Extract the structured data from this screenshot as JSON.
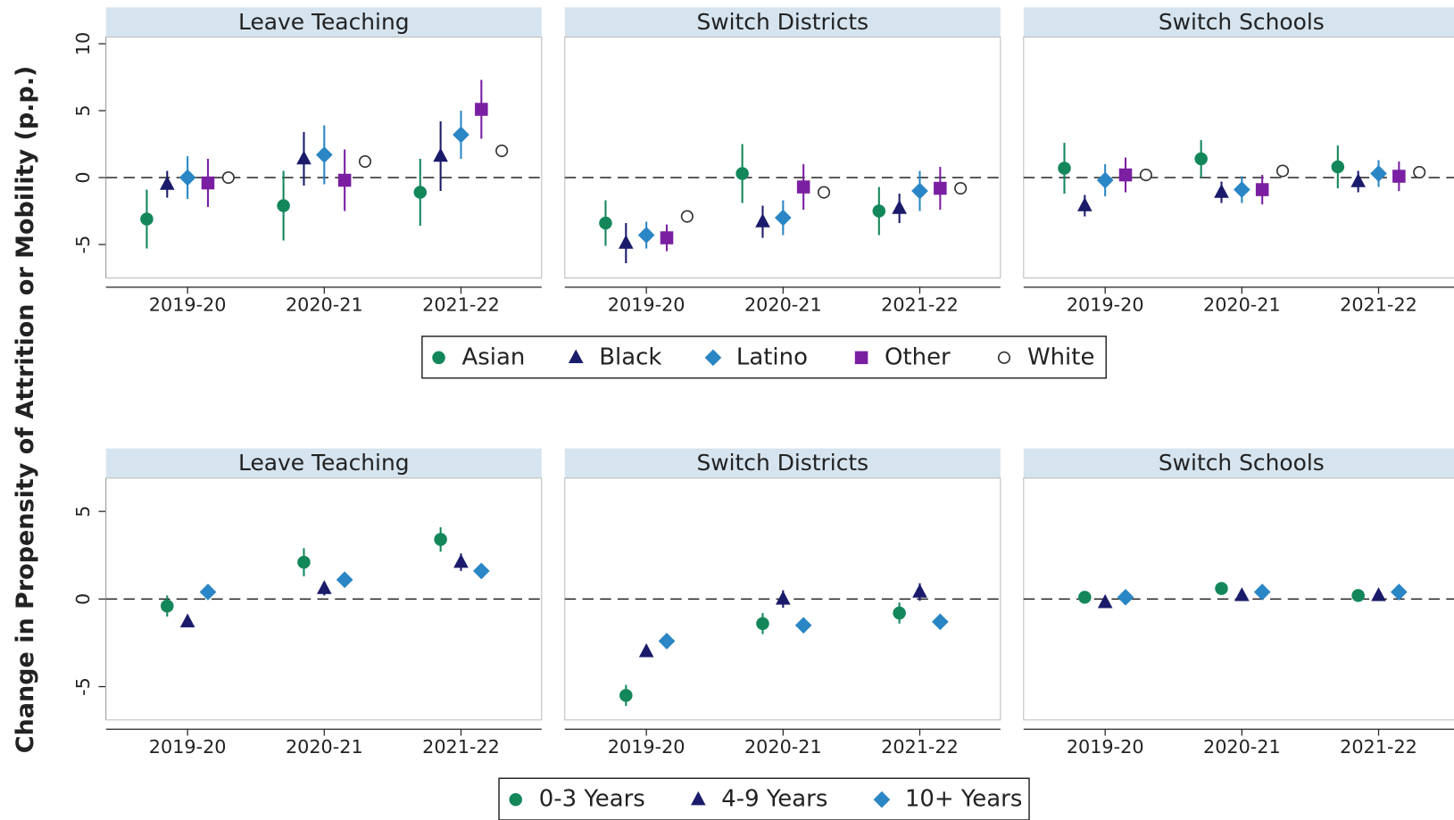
{
  "y_label": "Change in Propensity of Attrition or Mobility (p.p.)",
  "chart_data": [
    {
      "type": "errorbar",
      "categories": [
        "2019-20",
        "2020-21",
        "2021-22"
      ],
      "ylim": [
        -7.5,
        10.5
      ],
      "yticks": [
        -5,
        0,
        5,
        10
      ],
      "legend": "bottom",
      "grid": false,
      "series": [
        {
          "name": "Asian",
          "color": "#14875a",
          "marker": "circle"
        },
        {
          "name": "Black",
          "color": "#1b1b6b",
          "marker": "triangle"
        },
        {
          "name": "Latino",
          "color": "#2a86c4",
          "marker": "diamond"
        },
        {
          "name": "Other",
          "color": "#7a1fa2",
          "marker": "square"
        },
        {
          "name": "White",
          "color": "#333333",
          "marker": "hollow-circle"
        }
      ],
      "panels": [
        {
          "title": "Leave Teaching",
          "series": [
            {
              "values": [
                -3.1,
                -2.1,
                -1.1
              ],
              "errors": [
                2.2,
                2.6,
                2.5
              ]
            },
            {
              "values": [
                -0.5,
                1.4,
                1.6
              ],
              "errors": [
                1.0,
                2.0,
                2.6
              ]
            },
            {
              "values": [
                0,
                1.7,
                3.2
              ],
              "errors": [
                1.6,
                2.2,
                1.8
              ]
            },
            {
              "values": [
                -0.4,
                -0.2,
                5.1
              ],
              "errors": [
                1.8,
                2.3,
                2.2
              ]
            },
            {
              "values": [
                0,
                1.2,
                2.0
              ],
              "errors": [
                0.3,
                0.4,
                0.4
              ]
            }
          ]
        },
        {
          "title": "Switch Districts",
          "series": [
            {
              "values": [
                -3.4,
                0.3,
                -2.5
              ],
              "errors": [
                1.7,
                2.2,
                1.8
              ]
            },
            {
              "values": [
                -4.9,
                -3.3,
                -2.3
              ],
              "errors": [
                1.5,
                1.2,
                1.1
              ]
            },
            {
              "values": [
                -4.3,
                -3.0,
                -1.0
              ],
              "errors": [
                1.0,
                1.3,
                1.5
              ]
            },
            {
              "values": [
                -4.5,
                -0.7,
                -0.8
              ],
              "errors": [
                1.0,
                1.7,
                1.6
              ]
            },
            {
              "values": [
                -2.9,
                -1.1,
                -0.8
              ],
              "errors": [
                0.3,
                0.3,
                0.3
              ]
            }
          ]
        },
        {
          "title": "Switch Schools",
          "series": [
            {
              "values": [
                0.7,
                1.4,
                0.8
              ],
              "errors": [
                1.9,
                1.4,
                1.6
              ]
            },
            {
              "values": [
                -2.1,
                -1.1,
                -0.3
              ],
              "errors": [
                0.8,
                0.8,
                0.8
              ]
            },
            {
              "values": [
                -0.2,
                -0.9,
                0.3
              ],
              "errors": [
                1.2,
                1.0,
                1.0
              ]
            },
            {
              "values": [
                0.2,
                -0.9,
                0.1
              ],
              "errors": [
                1.3,
                1.1,
                1.1
              ]
            },
            {
              "values": [
                0.2,
                0.5,
                0.4
              ],
              "errors": [
                0.2,
                0.2,
                0.2
              ]
            }
          ]
        }
      ]
    },
    {
      "type": "errorbar",
      "categories": [
        "2019-20",
        "2020-21",
        "2021-22"
      ],
      "ylim": [
        -6.9,
        6.9
      ],
      "yticks": [
        -5,
        0,
        5
      ],
      "legend": "bottom",
      "grid": false,
      "series": [
        {
          "name": "0-3 Years",
          "color": "#14875a",
          "marker": "circle"
        },
        {
          "name": "4-9 Years",
          "color": "#1b1b6b",
          "marker": "triangle"
        },
        {
          "name": "10+ Years",
          "color": "#2a86c4",
          "marker": "diamond"
        }
      ],
      "panels": [
        {
          "title": "Leave Teaching",
          "series": [
            {
              "values": [
                -0.4,
                2.1,
                3.4
              ],
              "errors": [
                0.6,
                0.8,
                0.7
              ]
            },
            {
              "values": [
                -1.3,
                0.6,
                2.1
              ],
              "errors": [
                0.3,
                0.4,
                0.5
              ]
            },
            {
              "values": [
                0.4,
                1.1,
                1.6
              ],
              "errors": [
                0.2,
                0.2,
                0.2
              ]
            }
          ]
        },
        {
          "title": "Switch Districts",
          "series": [
            {
              "values": [
                -5.5,
                -1.4,
                -0.8
              ],
              "errors": [
                0.6,
                0.6,
                0.6
              ]
            },
            {
              "values": [
                -3.0,
                0,
                0.4
              ],
              "errors": [
                0.3,
                0.5,
                0.5
              ]
            },
            {
              "values": [
                -2.4,
                -1.5,
                -1.3
              ],
              "errors": [
                0.2,
                0.2,
                0.2
              ]
            }
          ]
        },
        {
          "title": "Switch Schools",
          "series": [
            {
              "values": [
                0.1,
                0.6,
                0.2
              ],
              "errors": [
                0.3,
                0.3,
                0.3
              ]
            },
            {
              "values": [
                -0.2,
                0.2,
                0.2
              ],
              "errors": [
                0.2,
                0.2,
                0.2
              ]
            },
            {
              "values": [
                0.1,
                0.4,
                0.4
              ],
              "errors": [
                0.1,
                0.1,
                0.1
              ]
            }
          ]
        }
      ]
    }
  ]
}
